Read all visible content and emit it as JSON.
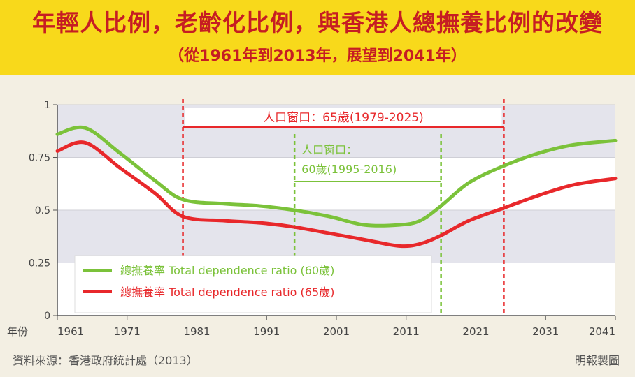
{
  "header": {
    "title": "年輕人比例，老齡化比例，與香港人總撫養比例的改變",
    "subtitle": "（從1961年到2013年，展望到2041年）"
  },
  "footer": {
    "source": "資料來源：香港政府統計處（2013）",
    "credit": "明報製圖"
  },
  "colors": {
    "green": "#7bc23a",
    "red": "#e8282b",
    "band": "#e4e4ec",
    "yellow": "#f8d91b"
  },
  "chart_data": {
    "type": "line",
    "xlabel": "年份",
    "x_ticks": [
      "1961",
      "1971",
      "1981",
      "1991",
      "2001",
      "2011",
      "2021",
      "2031",
      "2041"
    ],
    "y_ticks": [
      "0",
      "0.25",
      "0.5",
      "0.75",
      "1"
    ],
    "xlim": [
      1961,
      2041
    ],
    "ylim": [
      0,
      1
    ],
    "series": [
      {
        "name": "總撫養率 Total dependence ratio (60歲)",
        "color": "#7bc23a",
        "points": [
          [
            1961,
            0.86
          ],
          [
            1965,
            0.89
          ],
          [
            1970,
            0.77
          ],
          [
            1975,
            0.64
          ],
          [
            1979,
            0.55
          ],
          [
            1985,
            0.53
          ],
          [
            1990,
            0.52
          ],
          [
            1995,
            0.5
          ],
          [
            2000,
            0.47
          ],
          [
            2005,
            0.43
          ],
          [
            2010,
            0.43
          ],
          [
            2013,
            0.45
          ],
          [
            2016,
            0.52
          ],
          [
            2020,
            0.63
          ],
          [
            2025,
            0.71
          ],
          [
            2030,
            0.77
          ],
          [
            2035,
            0.81
          ],
          [
            2041,
            0.83
          ]
        ]
      },
      {
        "name": "總撫養率 Total dependence ratio (65歲)",
        "color": "#e8282b",
        "points": [
          [
            1961,
            0.78
          ],
          [
            1965,
            0.82
          ],
          [
            1970,
            0.7
          ],
          [
            1975,
            0.58
          ],
          [
            1979,
            0.47
          ],
          [
            1985,
            0.45
          ],
          [
            1990,
            0.44
          ],
          [
            1995,
            0.42
          ],
          [
            2000,
            0.39
          ],
          [
            2005,
            0.36
          ],
          [
            2010,
            0.33
          ],
          [
            2013,
            0.34
          ],
          [
            2016,
            0.38
          ],
          [
            2020,
            0.45
          ],
          [
            2025,
            0.51
          ],
          [
            2030,
            0.57
          ],
          [
            2035,
            0.62
          ],
          [
            2041,
            0.65
          ]
        ]
      }
    ],
    "annotations": [
      {
        "label": "人口窗口：65歲(1979-2025)",
        "x_start": 1979,
        "x_end": 2025,
        "color": "#e8282b"
      },
      {
        "label_line1": "人口窗口：",
        "label_line2": "60歲(1995-2016)",
        "x_start": 1995,
        "x_end": 2016,
        "color": "#7bc23a"
      }
    ],
    "legend_position": "bottom-left"
  }
}
